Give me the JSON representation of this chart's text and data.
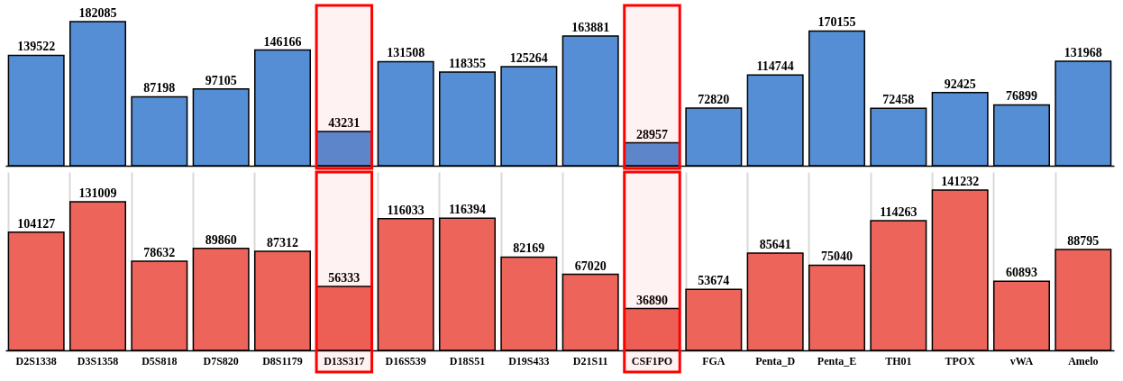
{
  "chart_data": [
    {
      "type": "bar",
      "categories": [
        "D2S1338",
        "D3S1358",
        "D5S818",
        "D7S820",
        "D8S1179",
        "D13S317",
        "D16S539",
        "D18S51",
        "D19S433",
        "D21S11",
        "CSF1PO",
        "FGA",
        "Penta_D",
        "Penta_E",
        "TH01",
        "TPOX",
        "vWA",
        "Amelo"
      ],
      "series": [
        {
          "color": "#558ed5",
          "values": [
            139522,
            182085,
            87198,
            97105,
            146166,
            43231,
            131508,
            118355,
            125264,
            163881,
            28957,
            72820,
            114744,
            170155,
            72458,
            92425,
            76899,
            131968
          ]
        }
      ],
      "data_labels": true,
      "tick_labels": false,
      "bands": [
        {
          "axis": "x",
          "from": "D13S317",
          "to": "D13S317",
          "color": "#ff0000"
        },
        {
          "axis": "x",
          "from": "CSF1PO",
          "to": "CSF1PO",
          "color": "#ff0000"
        }
      ]
    },
    {
      "type": "bar",
      "categories": [
        "D2S1338",
        "D3S1358",
        "D5S818",
        "D7S820",
        "D8S1179",
        "D13S317",
        "D16S539",
        "D18S51",
        "D19S433",
        "D21S11",
        "CSF1PO",
        "FGA",
        "Penta_D",
        "Penta_E",
        "TH01",
        "TPOX",
        "vWA",
        "Amelo"
      ],
      "series": [
        {
          "color": "#ec645a",
          "values": [
            104127,
            131009,
            78632,
            89860,
            87312,
            56333,
            116033,
            116394,
            82169,
            67020,
            36890,
            53674,
            85641,
            75040,
            114263,
            141232,
            60893,
            88795
          ]
        }
      ],
      "data_labels": true,
      "grid": "x",
      "bands": [
        {
          "axis": "x",
          "from": "D13S317",
          "to": "D13S317",
          "color": "#ff0000"
        },
        {
          "axis": "x",
          "from": "CSF1PO",
          "to": "CSF1PO",
          "color": "#ff0000"
        }
      ]
    }
  ]
}
